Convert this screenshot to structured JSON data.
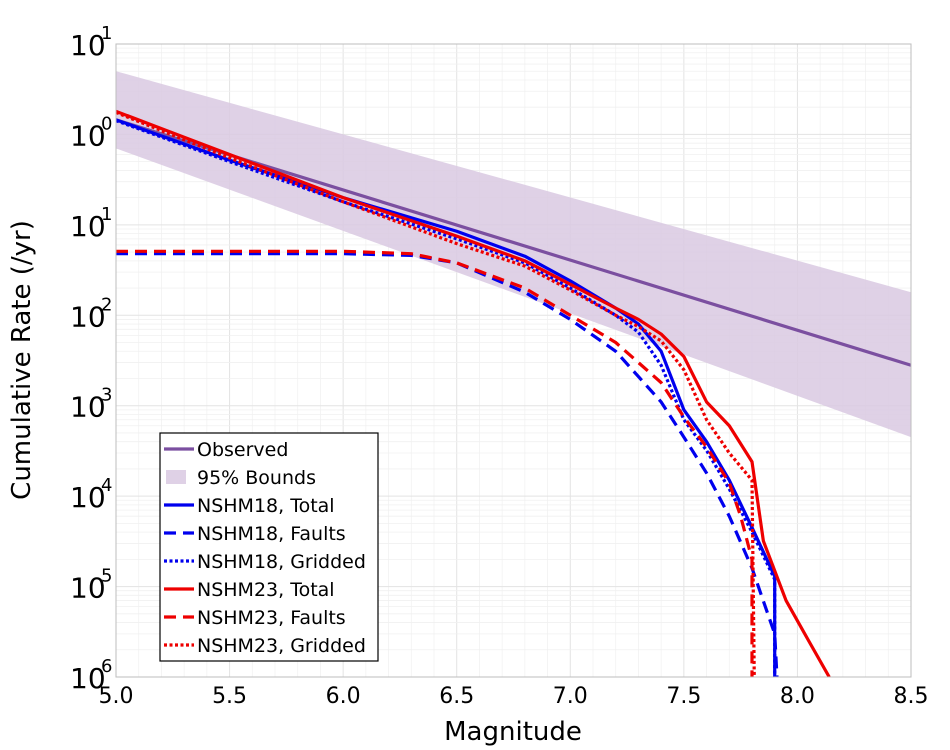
{
  "chart_data": {
    "type": "line",
    "title": "",
    "xlabel": "Magnitude",
    "ylabel": "Cumulative Rate (/yr)",
    "xlim": [
      5.0,
      8.5
    ],
    "ylim": [
      1e-06,
      10
    ],
    "y_scale": "log",
    "grid": true,
    "legend_position": "bottom-left",
    "x_ticks": [
      5.0,
      5.5,
      6.0,
      6.5,
      7.0,
      7.5,
      8.0,
      8.5
    ],
    "x_tick_labels": [
      "5.0",
      "5.5",
      "6.0",
      "6.5",
      "7.0",
      "7.5",
      "8.0",
      "8.5"
    ],
    "y_ticks": [
      {
        "value": 10.0,
        "base": "10",
        "exp": "1"
      },
      {
        "value": 1.0,
        "base": "10",
        "exp": "0"
      },
      {
        "value": 0.1,
        "base": "10",
        "exp": "1"
      },
      {
        "value": 0.01,
        "base": "10",
        "exp": "2"
      },
      {
        "value": 0.001,
        "base": "10",
        "exp": "3"
      },
      {
        "value": 0.0001,
        "base": "10",
        "exp": "4"
      },
      {
        "value": 1e-05,
        "base": "10",
        "exp": "5"
      },
      {
        "value": 1e-06,
        "base": "10",
        "exp": "6"
      }
    ],
    "band": {
      "name": "95% Bounds",
      "color": "#d9c9e2",
      "x": [
        5.0,
        8.5
      ],
      "upper": [
        5.0,
        0.018
      ],
      "lower": [
        0.7,
        0.00045
      ]
    },
    "series": [
      {
        "name": "Observed",
        "color": "#7b4fa0",
        "dash": "solid",
        "x": [
          5.0,
          8.5
        ],
        "y": [
          1.45,
          0.0028
        ]
      },
      {
        "name": "NSHM18, Total",
        "color": "#0000ee",
        "dash": "solid",
        "x": [
          5.0,
          5.5,
          6.0,
          6.5,
          6.8,
          7.0,
          7.2,
          7.3,
          7.4,
          7.5,
          7.6,
          7.7,
          7.8,
          7.9,
          7.9
        ],
        "y": [
          1.45,
          0.52,
          0.2,
          0.085,
          0.045,
          0.024,
          0.012,
          0.008,
          0.004,
          0.0009,
          0.0004,
          0.00015,
          4.5e-05,
          1.3e-05,
          1e-06
        ]
      },
      {
        "name": "NSHM18, Faults",
        "color": "#0000ee",
        "dash": "dashed",
        "x": [
          5.0,
          6.0,
          6.3,
          6.5,
          6.8,
          7.0,
          7.2,
          7.3,
          7.4,
          7.5,
          7.6,
          7.7,
          7.8,
          7.9,
          7.91
        ],
        "y": [
          0.048,
          0.048,
          0.046,
          0.038,
          0.018,
          0.009,
          0.004,
          0.0021,
          0.0011,
          0.00045,
          0.00018,
          6e-05,
          1.6e-05,
          3e-06,
          1e-06
        ]
      },
      {
        "name": "NSHM18, Gridded",
        "color": "#0000ee",
        "dash": "dotted",
        "x": [
          5.0,
          5.5,
          6.0,
          6.5,
          6.8,
          7.0,
          7.2,
          7.3,
          7.4,
          7.5,
          7.6,
          7.7,
          7.8,
          7.9,
          7.9
        ],
        "y": [
          1.42,
          0.5,
          0.18,
          0.07,
          0.038,
          0.02,
          0.01,
          0.0065,
          0.0028,
          0.0007,
          0.00032,
          0.00012,
          4e-05,
          1.2e-05,
          1e-06
        ]
      },
      {
        "name": "NSHM23, Total",
        "color": "#ee0000",
        "dash": "solid",
        "x": [
          5.0,
          5.5,
          6.0,
          6.5,
          6.8,
          7.0,
          7.2,
          7.3,
          7.4,
          7.5,
          7.6,
          7.7,
          7.8,
          7.85,
          7.95,
          8.05,
          8.14
        ],
        "y": [
          1.8,
          0.6,
          0.2,
          0.075,
          0.04,
          0.022,
          0.012,
          0.009,
          0.0062,
          0.0035,
          0.0011,
          0.0006,
          0.00024,
          3.2e-05,
          7e-06,
          2.5e-06,
          1e-06
        ]
      },
      {
        "name": "NSHM23, Faults",
        "color": "#ee0000",
        "dash": "dashed",
        "x": [
          5.0,
          6.0,
          6.3,
          6.5,
          6.8,
          7.0,
          7.2,
          7.3,
          7.4,
          7.5,
          7.6,
          7.7,
          7.75,
          7.8,
          7.8
        ],
        "y": [
          0.051,
          0.051,
          0.048,
          0.038,
          0.02,
          0.01,
          0.005,
          0.003,
          0.0018,
          0.00075,
          0.00035,
          0.00014,
          6e-05,
          2e-05,
          1e-06
        ]
      },
      {
        "name": "NSHM23, Gridded",
        "color": "#ee0000",
        "dash": "dotted",
        "x": [
          5.0,
          5.5,
          6.0,
          6.5,
          6.8,
          7.0,
          7.2,
          7.3,
          7.4,
          7.5,
          7.6,
          7.7,
          7.8,
          7.81
        ],
        "y": [
          1.75,
          0.55,
          0.18,
          0.062,
          0.035,
          0.019,
          0.01,
          0.0075,
          0.0052,
          0.0025,
          0.0007,
          0.0003,
          0.00015,
          1e-06
        ]
      }
    ]
  }
}
